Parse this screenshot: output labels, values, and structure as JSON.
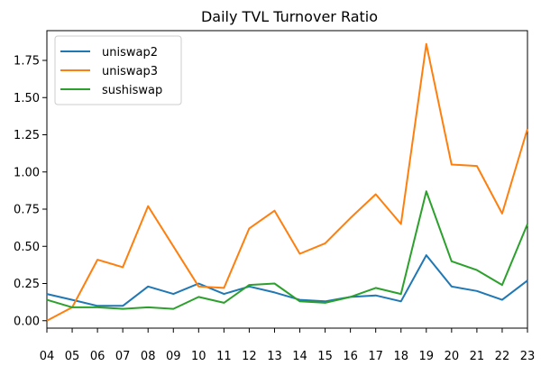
{
  "chart_data": {
    "type": "line",
    "title": "Daily TVL Turnover Ratio",
    "xlabel": "",
    "ylabel": "",
    "x": [
      "04",
      "05",
      "06",
      "07",
      "08",
      "09",
      "10",
      "11",
      "12",
      "13",
      "14",
      "15",
      "16",
      "17",
      "18",
      "19",
      "20",
      "21",
      "22",
      "23"
    ],
    "xlim": [
      "04",
      "23"
    ],
    "ylim": [
      -0.05,
      1.95
    ],
    "yticks": [
      "0.00",
      "0.25",
      "0.50",
      "0.75",
      "1.00",
      "1.25",
      "1.50",
      "1.75"
    ],
    "grid": false,
    "legend_position": "top-left",
    "series": [
      {
        "name": "uniswap2",
        "color": "#1f77b4",
        "values": [
          0.18,
          0.14,
          0.1,
          0.1,
          0.23,
          0.18,
          0.25,
          0.18,
          0.23,
          0.19,
          0.14,
          0.13,
          0.16,
          0.17,
          0.13,
          0.44,
          0.23,
          0.2,
          0.14,
          0.27
        ]
      },
      {
        "name": "uniswap3",
        "color": "#ff7f0e",
        "values": [
          0.0,
          0.09,
          0.41,
          0.36,
          0.77,
          0.5,
          0.23,
          0.22,
          0.62,
          0.74,
          0.45,
          0.52,
          0.69,
          0.85,
          0.65,
          1.86,
          1.05,
          1.04,
          0.72,
          1.29
        ]
      },
      {
        "name": "sushiswap",
        "color": "#2ca02c",
        "values": [
          0.14,
          0.09,
          0.09,
          0.08,
          0.09,
          0.08,
          0.16,
          0.12,
          0.24,
          0.25,
          0.13,
          0.12,
          0.16,
          0.22,
          0.18,
          0.87,
          0.4,
          0.34,
          0.24,
          0.65
        ]
      }
    ]
  }
}
